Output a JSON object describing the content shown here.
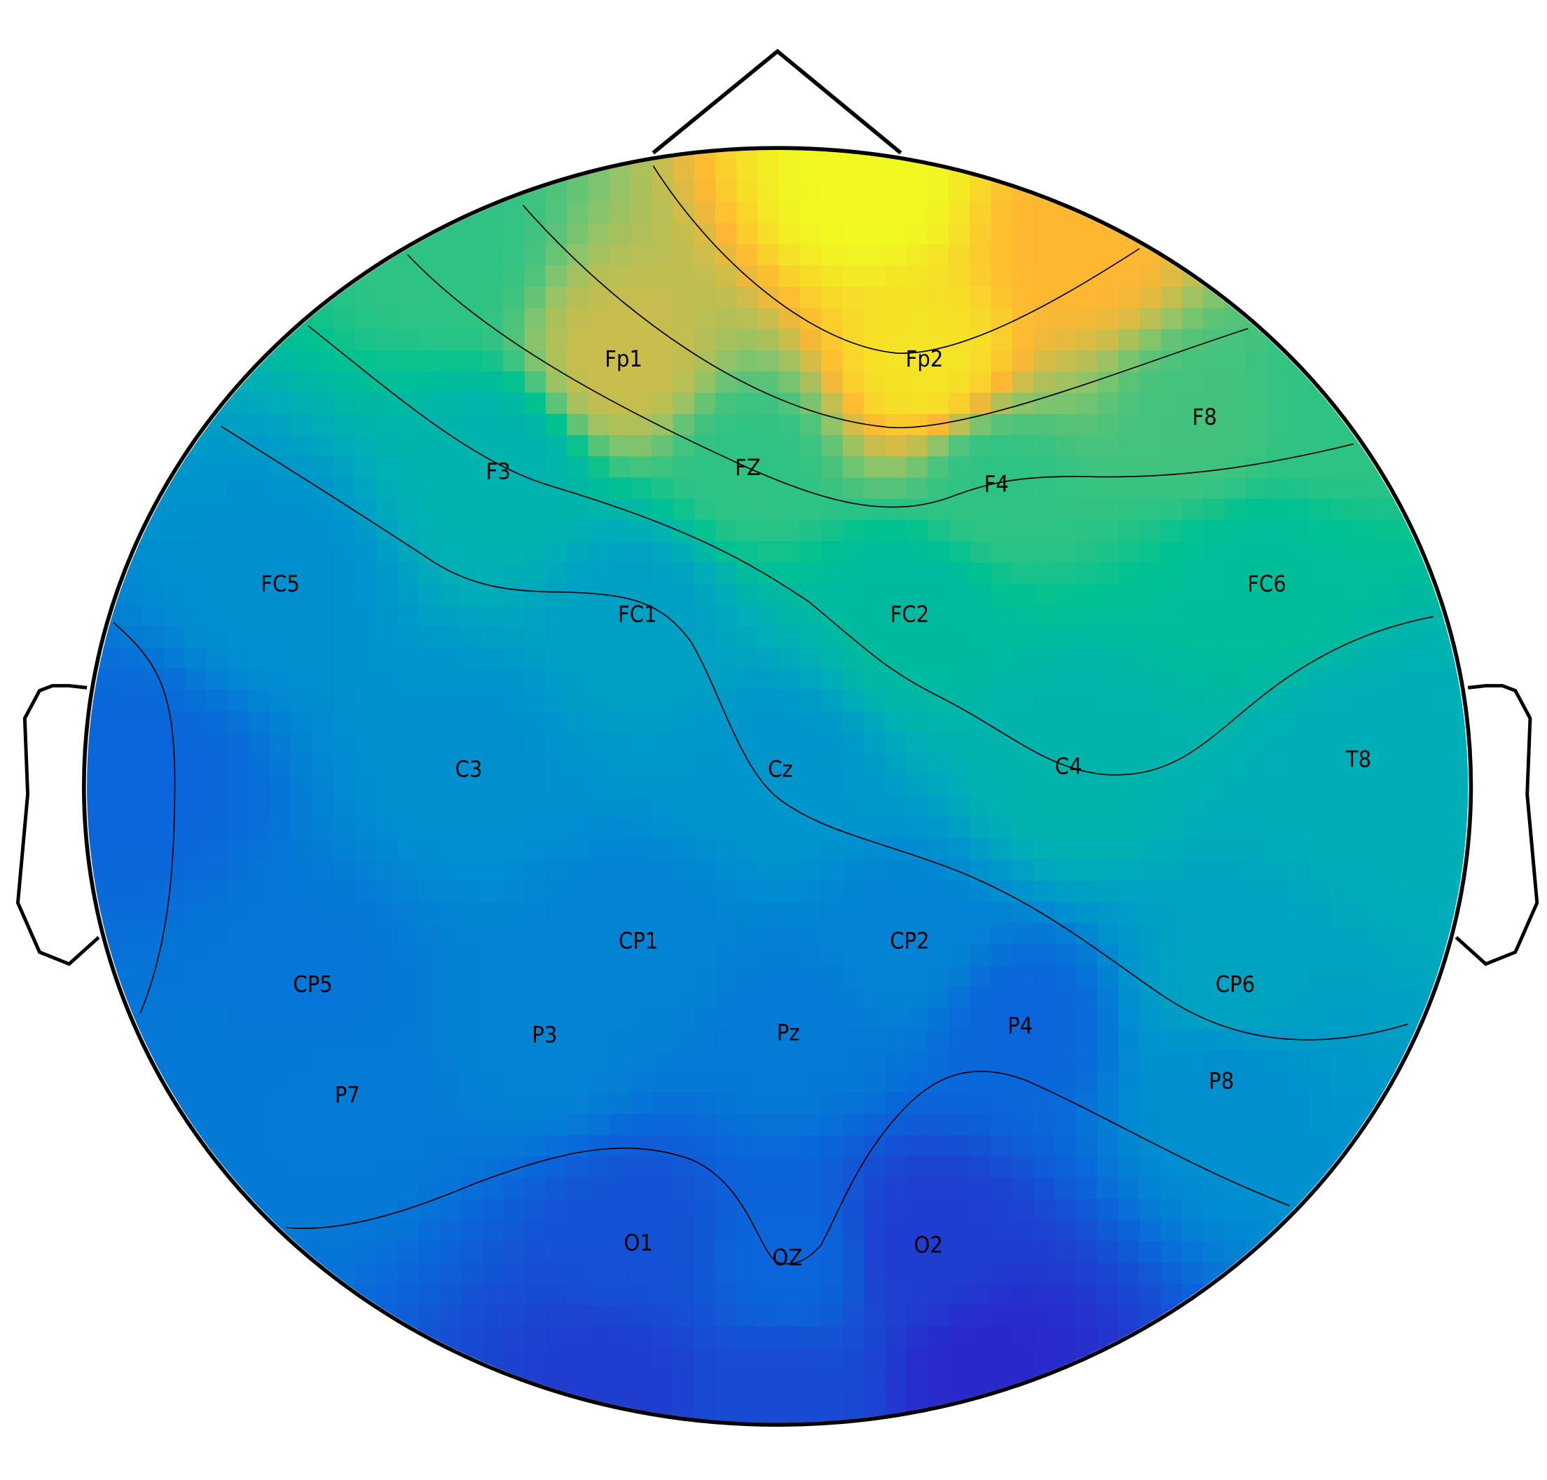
{
  "colormap": [
    "#2d22c8",
    "#0a66da",
    "#0090d0",
    "#00aeb8",
    "#00c290",
    "#8cc46a",
    "#ffb732",
    "#f0fa20"
  ],
  "electrodes": [
    {
      "label": "Fp1",
      "level": 0.78
    },
    {
      "label": "Fp2",
      "level": 0.95
    },
    {
      "label": "F8",
      "level": 0.62
    },
    {
      "label": "F3",
      "level": 0.45
    },
    {
      "label": "FZ",
      "level": 0.6
    },
    {
      "label": "F4",
      "level": 0.6
    },
    {
      "label": "FC5",
      "level": 0.3
    },
    {
      "label": "FC1",
      "level": 0.36
    },
    {
      "label": "FC2",
      "level": 0.5
    },
    {
      "label": "FC6",
      "level": 0.52
    },
    {
      "label": "C3",
      "level": 0.3
    },
    {
      "label": "Cz",
      "level": 0.32
    },
    {
      "label": "C4",
      "level": 0.46
    },
    {
      "label": "T8",
      "level": 0.42
    },
    {
      "label": "CP5",
      "level": 0.24
    },
    {
      "label": "CP1",
      "level": 0.27
    },
    {
      "label": "CP2",
      "level": 0.27
    },
    {
      "label": "CP6",
      "level": 0.38
    },
    {
      "label": "P3",
      "level": 0.27
    },
    {
      "label": "Pz",
      "level": 0.25
    },
    {
      "label": "P4",
      "level": 0.2
    },
    {
      "label": "P7",
      "level": 0.25
    },
    {
      "label": "P8",
      "level": 0.3
    },
    {
      "label": "O1",
      "level": 0.14
    },
    {
      "label": "OZ",
      "level": 0.2
    },
    {
      "label": "O2",
      "level": 0.08
    }
  ]
}
